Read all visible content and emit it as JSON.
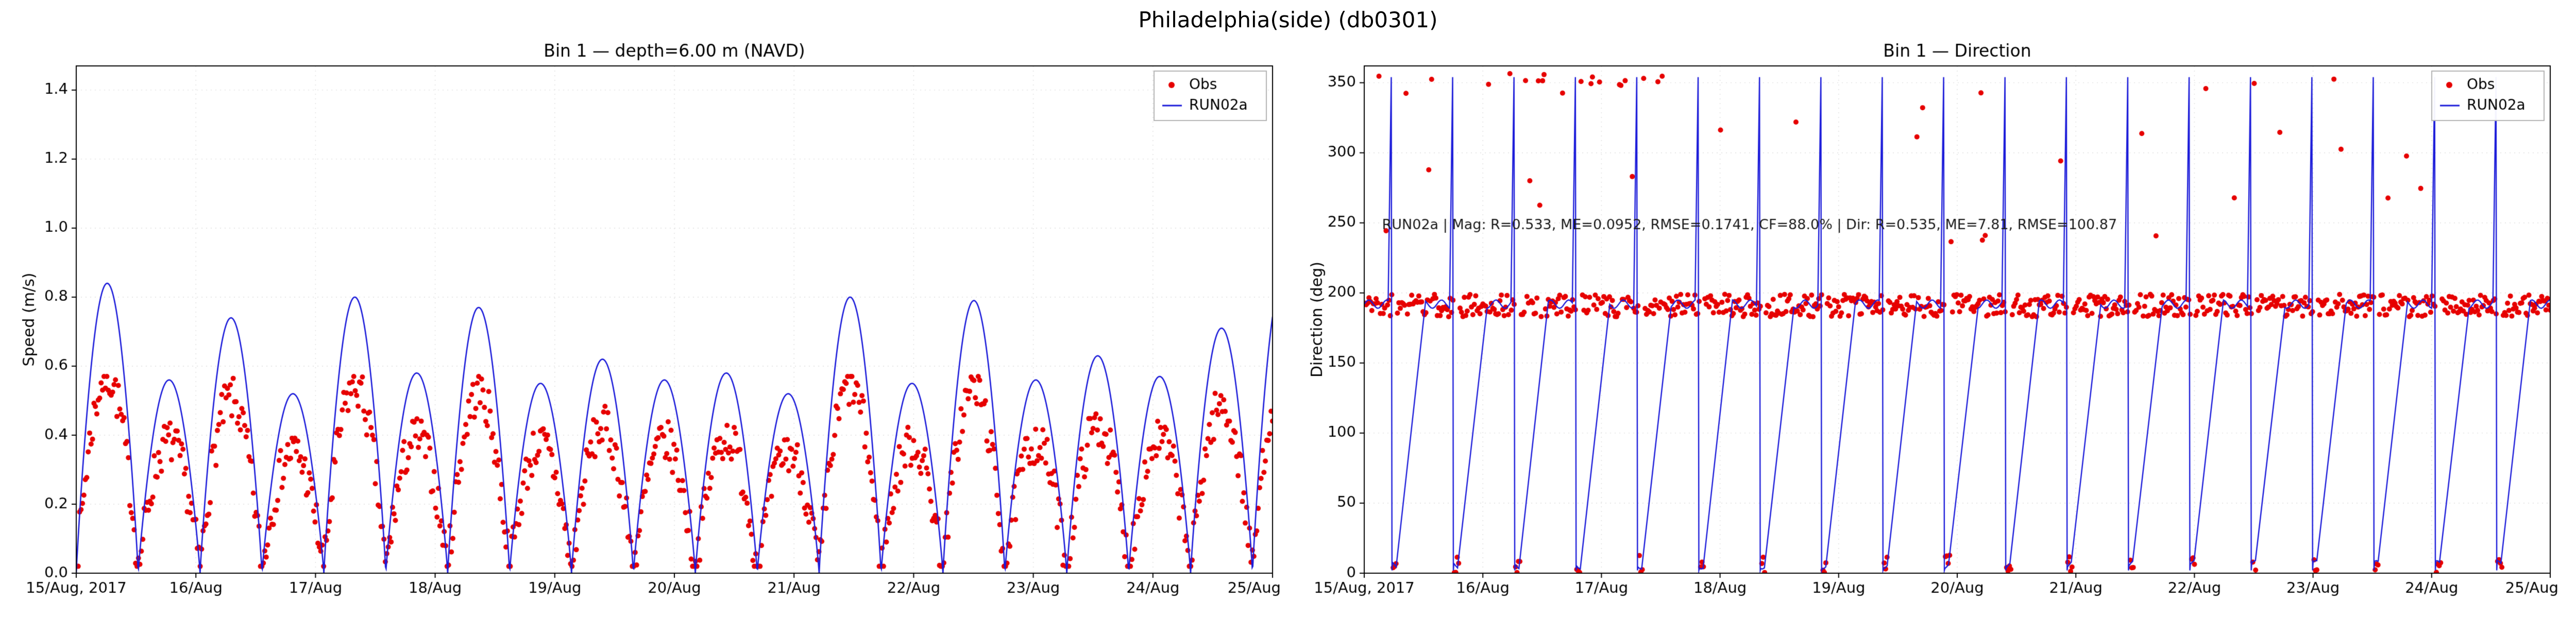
{
  "figure": {
    "title": "Philadelphia(side) (db0301)"
  },
  "legend": {
    "obs": "Obs",
    "model": "RUN02a"
  },
  "colors": {
    "obs": "#e60000",
    "model": "#1a1ad9",
    "grid": "#dedede",
    "spine": "#000000",
    "annotation_text": "#1a1a1a",
    "background": "#ffffff"
  },
  "x_axis": {
    "span_days": 10,
    "tick_labels": [
      "15/Aug, 2017",
      "16/Aug",
      "17/Aug",
      "18/Aug",
      "19/Aug",
      "20/Aug",
      "21/Aug",
      "22/Aug",
      "23/Aug",
      "24/Aug",
      "25/Aug"
    ]
  },
  "tidal_period_days": 0.5175,
  "chart_data": [
    {
      "type": "line+scatter",
      "kind": "speed",
      "title": "Bin 1 — depth=6.00 m (NAVD)",
      "ylabel": "Speed (m/s)",
      "xlabel": "",
      "ylim": [
        0,
        1.47
      ],
      "yticks": [
        0,
        0.2,
        0.4,
        0.6,
        0.8,
        1.0,
        1.2,
        1.4
      ],
      "ytick_labels": [
        "0.0",
        "0.2",
        "0.4",
        "0.6",
        "0.8",
        "1.0",
        "1.2",
        "1.4"
      ],
      "grid": true,
      "legend_position": "upper right",
      "series": [
        {
          "name": "Obs",
          "plot": "scatter",
          "color_key": "obs"
        },
        {
          "name": "RUN02a",
          "plot": "line",
          "color_key": "model"
        }
      ],
      "model": {
        "cycle_peak_speeds": [
          0.84,
          0.56,
          0.74,
          0.52,
          0.8,
          0.58,
          0.77,
          0.55,
          0.62,
          0.56,
          0.58,
          0.52,
          0.8,
          0.55,
          0.79,
          0.56,
          0.63,
          0.57,
          0.71,
          0.86
        ],
        "shape_exponent": 0.9,
        "sample_step_days": 0.005
      },
      "obs": {
        "sample_step_days": 0.012,
        "scale_vs_model": 0.68,
        "noise_amplitude": 0.065,
        "min": 0.02,
        "max": 0.57,
        "seed": 7
      }
    },
    {
      "type": "line+scatter",
      "kind": "direction",
      "title": "Bin 1 — Direction",
      "ylabel": "Direction (deg)",
      "xlabel": "",
      "ylim": [
        0,
        362
      ],
      "yticks": [
        0,
        50,
        100,
        150,
        200,
        250,
        300,
        350
      ],
      "ytick_labels": [
        "0",
        "50",
        "100",
        "150",
        "200",
        "250",
        "300",
        "350"
      ],
      "grid": true,
      "legend_position": "upper right",
      "series": [
        {
          "name": "Obs",
          "plot": "scatter",
          "color_key": "obs"
        },
        {
          "name": "RUN02a",
          "plot": "line",
          "color_key": "model"
        }
      ],
      "model": {
        "flood_direction_deg": 192,
        "ebb_direction_deg": 6,
        "wrap_spike_top_deg": 354,
        "flood_phase_end": 0.42,
        "spike_phase": 0.44,
        "ebb_phase_start": 0.46,
        "ebb_phase_end": 0.54,
        "wiggle_deg": 3,
        "sample_step_days": 0.01
      },
      "obs": {
        "sample_step_days": 0.012,
        "flood_center": 191,
        "flood_jitter": 8,
        "ebb_center": 6,
        "ebb_jitter": 7,
        "outlier_prob": 0.035,
        "outlier_range": [
          235,
          357
        ],
        "early_top_prob": 0.06,
        "early_top_tmax_days": 2.6,
        "early_top_range": [
          348,
          357
        ],
        "seed": 11
      },
      "annotation": {
        "text": "RUN02a | Mag: R=0.533, ME=0.0952, RMSE=0.1741, CF=88.0% | Dir: R=0.535, ME=7.81, RMSE=100.87",
        "x_day": 0.15,
        "y_deg": 248
      },
      "stats": {
        "mag": {
          "R": 0.533,
          "ME": 0.0952,
          "RMSE": 0.1741,
          "CF_percent": 88.0
        },
        "dir": {
          "R": 0.535,
          "ME": 7.81,
          "RMSE": 100.87
        }
      }
    }
  ]
}
